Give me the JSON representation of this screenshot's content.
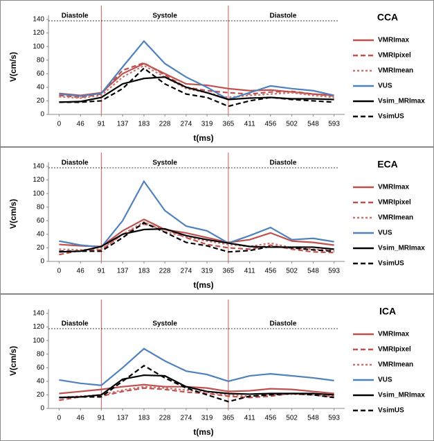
{
  "chart_data": [
    {
      "type": "line",
      "title": "CCA",
      "x_label": "t(ms)",
      "y_label": "V(cm/s)",
      "x": [
        0,
        46,
        91,
        137,
        183,
        228,
        274,
        319,
        365,
        411,
        456,
        502,
        548,
        593
      ],
      "xticks": [
        0,
        46,
        91,
        137,
        183,
        228,
        274,
        319,
        365,
        411,
        456,
        502,
        548,
        593
      ],
      "xlim": [
        -23,
        616
      ],
      "ylim": [
        0,
        140
      ],
      "yticks": [
        0,
        20,
        40,
        60,
        80,
        100,
        120,
        140
      ],
      "vlines": [
        91,
        365
      ],
      "annotations": [
        "Diastole",
        "Systole",
        "Diastole"
      ],
      "series": [
        {
          "name": "VMRImax",
          "color": "#c0504d",
          "dash": "solid",
          "values": [
            31,
            28,
            32,
            60,
            75,
            60,
            45,
            43,
            38,
            35,
            36,
            33,
            30,
            28
          ]
        },
        {
          "name": "VMRIpixel",
          "color": "#c0504d",
          "dash": "dash",
          "values": [
            28,
            25,
            30,
            65,
            76,
            58,
            40,
            35,
            32,
            30,
            33,
            34,
            30,
            27
          ]
        },
        {
          "name": "VMRImean",
          "color": "#d0706c",
          "dash": "dot",
          "values": [
            26,
            24,
            28,
            55,
            72,
            55,
            38,
            32,
            25,
            28,
            30,
            32,
            28,
            25
          ]
        },
        {
          "name": "VUS",
          "color": "#4f81bd",
          "dash": "solid",
          "values": [
            30,
            27,
            31,
            70,
            108,
            75,
            55,
            40,
            22,
            32,
            42,
            38,
            35,
            28
          ]
        },
        {
          "name": "Vsim_MRImax",
          "color": "#000000",
          "dash": "solid",
          "values": [
            18,
            19,
            25,
            45,
            53,
            55,
            40,
            32,
            22,
            24,
            25,
            23,
            23,
            22
          ]
        },
        {
          "name": "VsimUS",
          "color": "#000000",
          "dash": "dash",
          "values": [
            18,
            18,
            20,
            38,
            68,
            45,
            30,
            25,
            12,
            20,
            25,
            22,
            20,
            18
          ]
        }
      ]
    },
    {
      "type": "line",
      "title": "ECA",
      "x_label": "t(ms)",
      "y_label": "V(cm/s)",
      "x": [
        0,
        46,
        91,
        137,
        183,
        228,
        274,
        319,
        365,
        411,
        456,
        502,
        548,
        593
      ],
      "xticks": [
        0,
        46,
        91,
        137,
        183,
        228,
        274,
        319,
        365,
        411,
        456,
        502,
        548,
        593
      ],
      "xlim": [
        -23,
        616
      ],
      "ylim": [
        0,
        140
      ],
      "yticks": [
        0,
        20,
        40,
        60,
        80,
        100,
        120,
        140
      ],
      "vlines": [
        91,
        365
      ],
      "annotations": [
        "Diastole",
        "Systole",
        "Diastole"
      ],
      "series": [
        {
          "name": "VMRImax",
          "color": "#c0504d",
          "dash": "solid",
          "values": [
            25,
            23,
            22,
            45,
            62,
            47,
            42,
            35,
            28,
            32,
            42,
            30,
            28,
            24
          ]
        },
        {
          "name": "VMRIpixel",
          "color": "#c0504d",
          "dash": "dash",
          "values": [
            10,
            16,
            17,
            40,
            55,
            48,
            35,
            25,
            20,
            18,
            24,
            18,
            14,
            13
          ]
        },
        {
          "name": "VMRImean",
          "color": "#d0706c",
          "dash": "dot",
          "values": [
            18,
            17,
            18,
            40,
            58,
            44,
            36,
            30,
            25,
            22,
            27,
            20,
            18,
            16
          ]
        },
        {
          "name": "VUS",
          "color": "#4f81bd",
          "dash": "solid",
          "values": [
            30,
            24,
            21,
            60,
            118,
            75,
            52,
            45,
            27,
            38,
            50,
            32,
            34,
            29
          ]
        },
        {
          "name": "Vsim_MRImax",
          "color": "#000000",
          "dash": "solid",
          "values": [
            14,
            15,
            22,
            40,
            47,
            48,
            38,
            32,
            27,
            22,
            21,
            21,
            21,
            18
          ]
        },
        {
          "name": "VsimUS",
          "color": "#000000",
          "dash": "dash",
          "values": [
            15,
            15,
            15,
            35,
            57,
            43,
            28,
            23,
            14,
            16,
            22,
            20,
            17,
            15
          ]
        }
      ]
    },
    {
      "type": "line",
      "title": "ICA",
      "x_label": "t(ms)",
      "y_label": "V(cm/s)",
      "x": [
        0,
        46,
        91,
        137,
        183,
        228,
        274,
        319,
        365,
        411,
        456,
        502,
        548,
        593
      ],
      "xticks": [
        0,
        46,
        91,
        137,
        183,
        228,
        274,
        319,
        365,
        411,
        456,
        502,
        548,
        593
      ],
      "xlim": [
        -23,
        616
      ],
      "ylim": [
        0,
        140
      ],
      "yticks": [
        0,
        20,
        40,
        60,
        80,
        100,
        120,
        140
      ],
      "vlines": [
        91,
        365
      ],
      "annotations": [
        "Diastole",
        "Systole",
        "Diastole"
      ],
      "series": [
        {
          "name": "VMRImax",
          "color": "#c0504d",
          "dash": "solid",
          "values": [
            22,
            25,
            28,
            32,
            35,
            32,
            32,
            30,
            25,
            26,
            29,
            28,
            25,
            22
          ]
        },
        {
          "name": "VMRIpixel",
          "color": "#c0504d",
          "dash": "dash",
          "values": [
            12,
            17,
            18,
            25,
            30,
            28,
            24,
            22,
            18,
            16,
            18,
            22,
            20,
            17
          ]
        },
        {
          "name": "VMRImean",
          "color": "#d0706c",
          "dash": "dot",
          "values": [
            16,
            18,
            20,
            27,
            32,
            30,
            27,
            24,
            20,
            18,
            20,
            21,
            20,
            18
          ]
        },
        {
          "name": "VUS",
          "color": "#4f81bd",
          "dash": "solid",
          "values": [
            42,
            37,
            34,
            60,
            88,
            70,
            55,
            50,
            40,
            48,
            51,
            48,
            45,
            41
          ]
        },
        {
          "name": "Vsim_MRImax",
          "color": "#000000",
          "dash": "solid",
          "values": [
            16,
            17,
            20,
            43,
            49,
            48,
            32,
            25,
            22,
            21,
            22,
            22,
            22,
            20
          ]
        },
        {
          "name": "VsimUS",
          "color": "#000000",
          "dash": "dash",
          "values": [
            16,
            17,
            17,
            40,
            63,
            45,
            30,
            20,
            10,
            18,
            20,
            22,
            20,
            16
          ]
        }
      ]
    }
  ]
}
